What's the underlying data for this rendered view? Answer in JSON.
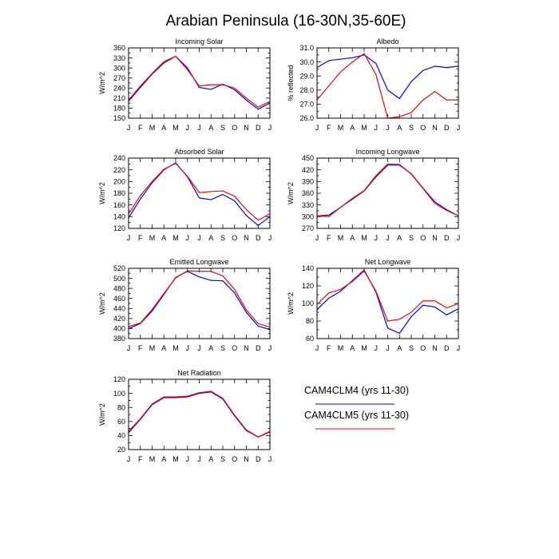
{
  "figure": {
    "title": "Arabian Peninsula (16-30N,35-60E)"
  },
  "legend": {
    "items": [
      {
        "label": "CAM4CLM4 (yrs 11-30)",
        "color": "#0000ff"
      },
      {
        "label": "CAM4CLM5 (yrs 11-30)",
        "color": "#ff0000"
      }
    ]
  },
  "chart_data": [
    {
      "type": "line",
      "title": "Incoming Solar",
      "ylabel": "W/m^2",
      "ylim": [
        150,
        360
      ],
      "yticks": [
        150,
        180,
        210,
        240,
        270,
        300,
        330,
        360
      ],
      "ytick_labels": [
        "150",
        "180",
        "210",
        "240",
        "270",
        "300",
        "330",
        "360"
      ],
      "categories": [
        "J",
        "F",
        "M",
        "A",
        "M",
        "J",
        "J",
        "A",
        "S",
        "O",
        "N",
        "D",
        "J"
      ],
      "series": [
        {
          "color": "#0000ff",
          "values": [
            201,
            242,
            282,
            315,
            335,
            300,
            242,
            236,
            252,
            235,
            204,
            177,
            195
          ]
        },
        {
          "color": "#ff0000",
          "values": [
            204,
            246,
            284,
            319,
            335,
            295,
            246,
            250,
            250,
            240,
            210,
            183,
            200
          ]
        }
      ]
    },
    {
      "type": "line",
      "title": "Albedo",
      "ylabel": "% reflected",
      "ylim": [
        26,
        31
      ],
      "yticks": [
        26,
        27,
        28,
        29,
        30,
        31
      ],
      "ytick_labels": [
        "26.0",
        "27.0",
        "28.0",
        "29.0",
        "30.0",
        "31.0"
      ],
      "categories": [
        "J",
        "F",
        "M",
        "A",
        "M",
        "J",
        "J",
        "A",
        "S",
        "O",
        "N",
        "D",
        "J"
      ],
      "series": [
        {
          "color": "#0000ff",
          "values": [
            29.6,
            30.1,
            30.2,
            30.3,
            30.5,
            29.9,
            28.0,
            27.4,
            28.6,
            29.4,
            29.7,
            29.6,
            29.7
          ]
        },
        {
          "color": "#ff0000",
          "values": [
            27.3,
            28.3,
            29.3,
            30.0,
            30.6,
            29.1,
            26.0,
            26.1,
            26.4,
            27.3,
            27.9,
            27.3,
            27.3
          ]
        }
      ]
    },
    {
      "type": "line",
      "title": "Absorbed Solar",
      "ylabel": "W/m^2",
      "ylim": [
        120,
        240
      ],
      "yticks": [
        120,
        140,
        160,
        180,
        200,
        220,
        240
      ],
      "ytick_labels": [
        "120",
        "140",
        "160",
        "180",
        "200",
        "220",
        "240"
      ],
      "categories": [
        "J",
        "F",
        "M",
        "A",
        "M",
        "J",
        "J",
        "A",
        "S",
        "O",
        "N",
        "D",
        "J"
      ],
      "series": [
        {
          "color": "#0000ff",
          "values": [
            138,
            170,
            198,
            220,
            232,
            208,
            172,
            169,
            178,
            167,
            142,
            125,
            140
          ]
        },
        {
          "color": "#ff0000",
          "values": [
            145,
            176,
            200,
            221,
            231,
            209,
            181,
            183,
            184,
            175,
            152,
            134,
            145
          ]
        }
      ]
    },
    {
      "type": "line",
      "title": "Incoming Longwave",
      "ylabel": "W/m^2",
      "ylim": [
        270,
        450
      ],
      "yticks": [
        270,
        300,
        330,
        360,
        390,
        420,
        450
      ],
      "ytick_labels": [
        "270",
        "300",
        "330",
        "360",
        "390",
        "420",
        "450"
      ],
      "categories": [
        "J",
        "F",
        "M",
        "A",
        "M",
        "J",
        "J",
        "A",
        "S",
        "O",
        "N",
        "D",
        "J"
      ],
      "series": [
        {
          "color": "#0000ff",
          "values": [
            302,
            304,
            324,
            345,
            366,
            402,
            432,
            432,
            410,
            373,
            338,
            318,
            302
          ]
        },
        {
          "color": "#ff0000",
          "values": [
            302,
            300,
            324,
            347,
            367,
            405,
            435,
            434,
            409,
            372,
            334,
            316,
            302
          ]
        }
      ]
    },
    {
      "type": "line",
      "title": "Emitted Longwave",
      "ylabel": "W/m^2",
      "ylim": [
        380,
        520
      ],
      "yticks": [
        380,
        400,
        420,
        440,
        460,
        480,
        500,
        520
      ],
      "ytick_labels": [
        "380",
        "400",
        "420",
        "440",
        "460",
        "480",
        "500",
        "520"
      ],
      "categories": [
        "J",
        "F",
        "M",
        "A",
        "M",
        "J",
        "J",
        "A",
        "S",
        "O",
        "N",
        "D",
        "J"
      ],
      "series": [
        {
          "color": "#0000ff",
          "values": [
            400,
            410,
            435,
            468,
            502,
            514,
            503,
            496,
            495,
            471,
            432,
            405,
            398
          ]
        },
        {
          "color": "#ff0000",
          "values": [
            404,
            411,
            438,
            470,
            501,
            515,
            514,
            514,
            505,
            478,
            437,
            410,
            403
          ]
        }
      ]
    },
    {
      "type": "line",
      "title": "Net Longwave",
      "ylabel": "W/m^2",
      "ylim": [
        60,
        140
      ],
      "yticks": [
        60,
        80,
        100,
        120,
        140
      ],
      "ytick_labels": [
        "60",
        "80",
        "100",
        "120",
        "140"
      ],
      "categories": [
        "J",
        "F",
        "M",
        "A",
        "M",
        "J",
        "J",
        "A",
        "S",
        "O",
        "N",
        "D",
        "J"
      ],
      "series": [
        {
          "color": "#0000ff",
          "values": [
            93,
            106,
            114,
            126,
            138,
            113,
            72,
            66,
            85,
            98,
            96,
            87,
            94
          ]
        },
        {
          "color": "#ff0000",
          "values": [
            99,
            112,
            116,
            125,
            137,
            114,
            80,
            82,
            90,
            103,
            103,
            95,
            100
          ]
        }
      ]
    },
    {
      "type": "line",
      "title": "Net Radiation",
      "ylabel": "W/m^2",
      "ylim": [
        20,
        120
      ],
      "yticks": [
        20,
        40,
        60,
        80,
        100,
        120
      ],
      "ytick_labels": [
        "20",
        "40",
        "60",
        "80",
        "100",
        "120"
      ],
      "categories": [
        "J",
        "F",
        "M",
        "A",
        "M",
        "J",
        "J",
        "A",
        "S",
        "O",
        "N",
        "D",
        "J"
      ],
      "series": [
        {
          "color": "#0000ff",
          "values": [
            44,
            63,
            84,
            94,
            94,
            95,
            100,
            102,
            92,
            68,
            47,
            38,
            45
          ]
        },
        {
          "color": "#ff0000",
          "values": [
            46,
            64,
            85,
            95,
            95,
            96,
            101,
            103,
            93,
            69,
            48,
            38,
            46
          ]
        }
      ]
    }
  ]
}
